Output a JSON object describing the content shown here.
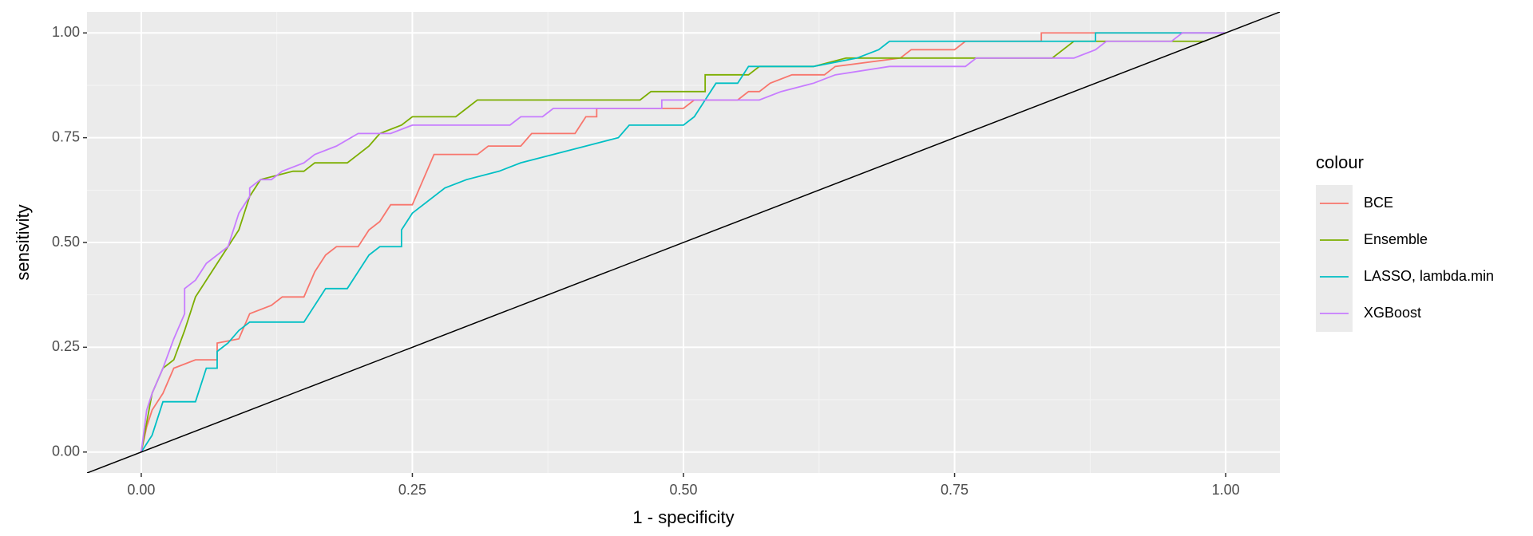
{
  "chart_data": {
    "type": "line",
    "x_label": "1 - specificity",
    "y_label": "sensitivity",
    "legend_title": "colour",
    "legend_position": "right",
    "grid": true,
    "xlim": [
      -0.05,
      1.05
    ],
    "ylim": [
      -0.05,
      1.05
    ],
    "xticks": [
      {
        "value": 0,
        "label": "0.00"
      },
      {
        "value": 0.25,
        "label": "0.25"
      },
      {
        "value": 0.5,
        "label": "0.50"
      },
      {
        "value": 0.75,
        "label": "0.75"
      },
      {
        "value": 1,
        "label": "1.00"
      }
    ],
    "yticks": [
      {
        "value": 0,
        "label": "0.00"
      },
      {
        "value": 0.25,
        "label": "0.25"
      },
      {
        "value": 0.5,
        "label": "0.50"
      },
      {
        "value": 0.75,
        "label": "0.75"
      },
      {
        "value": 1,
        "label": "1.00"
      }
    ],
    "series": [
      {
        "name": "BCE",
        "color": "#f8766d",
        "x": [
          0,
          0.005,
          0.01,
          0.02,
          0.03,
          0.05,
          0.07,
          0.07,
          0.09,
          0.1,
          0.12,
          0.13,
          0.15,
          0.16,
          0.17,
          0.18,
          0.2,
          0.21,
          0.22,
          0.23,
          0.25,
          0.26,
          0.27,
          0.31,
          0.32,
          0.35,
          0.36,
          0.4,
          0.41,
          0.42,
          0.42,
          0.5,
          0.51,
          0.55,
          0.56,
          0.57,
          0.58,
          0.6,
          0.63,
          0.64,
          0.7,
          0.71,
          0.75,
          0.76,
          0.83,
          0.83,
          1
        ],
        "values": [
          0,
          0.06,
          0.1,
          0.14,
          0.2,
          0.22,
          0.22,
          0.26,
          0.27,
          0.33,
          0.35,
          0.37,
          0.37,
          0.43,
          0.47,
          0.49,
          0.49,
          0.53,
          0.55,
          0.59,
          0.59,
          0.65,
          0.71,
          0.71,
          0.73,
          0.73,
          0.76,
          0.76,
          0.8,
          0.8,
          0.82,
          0.82,
          0.84,
          0.84,
          0.86,
          0.86,
          0.88,
          0.9,
          0.9,
          0.92,
          0.94,
          0.96,
          0.96,
          0.98,
          0.98,
          1,
          1
        ]
      },
      {
        "name": "Ensemble",
        "color": "#7cae00",
        "x": [
          0,
          0.01,
          0.02,
          0.03,
          0.04,
          0.05,
          0.06,
          0.07,
          0.08,
          0.09,
          0.1,
          0.11,
          0.14,
          0.15,
          0.16,
          0.19,
          0.2,
          0.21,
          0.22,
          0.24,
          0.25,
          0.29,
          0.3,
          0.31,
          0.46,
          0.47,
          0.52,
          0.52,
          0.56,
          0.57,
          0.62,
          0.65,
          0.84,
          0.85,
          0.86,
          0.98,
          1
        ],
        "values": [
          0,
          0.14,
          0.2,
          0.22,
          0.29,
          0.37,
          0.41,
          0.45,
          0.49,
          0.53,
          0.61,
          0.65,
          0.67,
          0.67,
          0.69,
          0.69,
          0.71,
          0.73,
          0.76,
          0.78,
          0.8,
          0.8,
          0.82,
          0.84,
          0.84,
          0.86,
          0.86,
          0.9,
          0.9,
          0.92,
          0.92,
          0.94,
          0.94,
          0.96,
          0.98,
          0.98,
          1
        ]
      },
      {
        "name": "LASSO, lambda.min",
        "color": "#00bfc4",
        "x": [
          0,
          0.01,
          0.015,
          0.02,
          0.05,
          0.06,
          0.07,
          0.07,
          0.08,
          0.09,
          0.1,
          0.15,
          0.16,
          0.17,
          0.19,
          0.2,
          0.21,
          0.22,
          0.24,
          0.24,
          0.25,
          0.26,
          0.28,
          0.3,
          0.33,
          0.35,
          0.38,
          0.41,
          0.44,
          0.45,
          0.5,
          0.51,
          0.52,
          0.53,
          0.55,
          0.56,
          0.62,
          0.66,
          0.68,
          0.69,
          0.88,
          0.88,
          1
        ],
        "values": [
          0,
          0.04,
          0.08,
          0.12,
          0.12,
          0.2,
          0.2,
          0.24,
          0.26,
          0.29,
          0.31,
          0.31,
          0.35,
          0.39,
          0.39,
          0.43,
          0.47,
          0.49,
          0.49,
          0.53,
          0.57,
          0.59,
          0.63,
          0.65,
          0.67,
          0.69,
          0.71,
          0.73,
          0.75,
          0.78,
          0.78,
          0.8,
          0.84,
          0.88,
          0.88,
          0.92,
          0.92,
          0.94,
          0.96,
          0.98,
          0.98,
          1,
          1
        ]
      },
      {
        "name": "XGBoost",
        "color": "#c77cff",
        "x": [
          0,
          0.005,
          0.01,
          0.02,
          0.03,
          0.04,
          0.04,
          0.05,
          0.06,
          0.08,
          0.09,
          0.1,
          0.1,
          0.11,
          0.12,
          0.13,
          0.15,
          0.16,
          0.18,
          0.2,
          0.23,
          0.25,
          0.34,
          0.35,
          0.37,
          0.38,
          0.48,
          0.48,
          0.57,
          0.59,
          0.62,
          0.64,
          0.69,
          0.76,
          0.77,
          0.86,
          0.88,
          0.89,
          0.95,
          0.96,
          1
        ],
        "values": [
          0,
          0.1,
          0.14,
          0.2,
          0.27,
          0.33,
          0.39,
          0.41,
          0.45,
          0.49,
          0.57,
          0.61,
          0.63,
          0.65,
          0.65,
          0.67,
          0.69,
          0.71,
          0.73,
          0.76,
          0.76,
          0.78,
          0.78,
          0.8,
          0.8,
          0.82,
          0.82,
          0.84,
          0.84,
          0.86,
          0.88,
          0.9,
          0.92,
          0.92,
          0.94,
          0.94,
          0.96,
          0.98,
          0.98,
          1,
          1
        ]
      }
    ]
  }
}
